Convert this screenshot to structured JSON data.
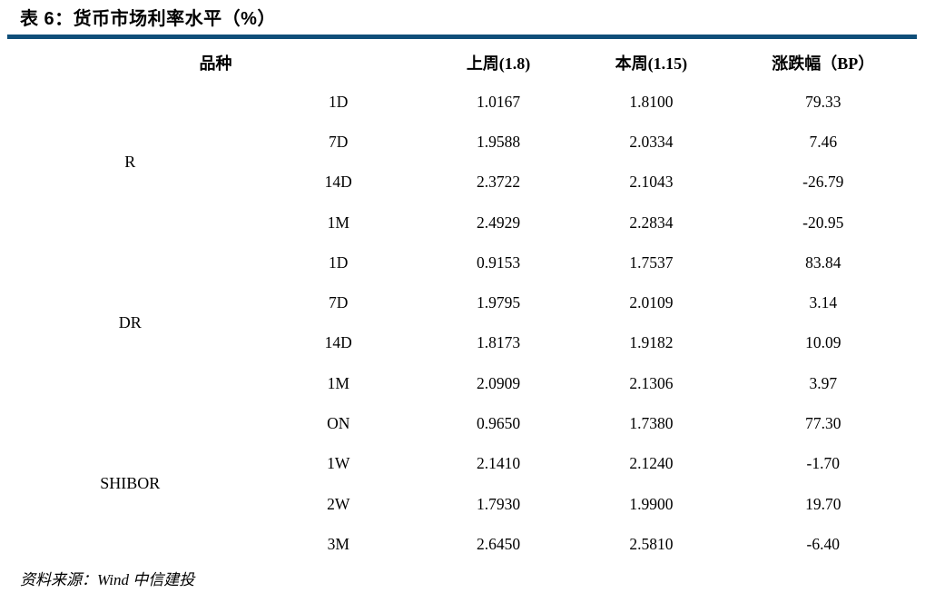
{
  "title": "表 6：货币市场利率水平（%）",
  "theme": {
    "rule_color": "#0f4e79",
    "text_color": "#000000",
    "background_color": "#ffffff"
  },
  "table": {
    "headers": {
      "variety": "品种",
      "last_week": "上周(1.8)",
      "this_week": "本周(1.15)",
      "change_bp": "涨跌幅（BP）"
    },
    "groups": [
      {
        "label": "R",
        "rows": [
          {
            "tenor": "1D",
            "last_week": "1.0167",
            "this_week": "1.8100",
            "change_bp": "79.33"
          },
          {
            "tenor": "7D",
            "last_week": "1.9588",
            "this_week": "2.0334",
            "change_bp": "7.46"
          },
          {
            "tenor": "14D",
            "last_week": "2.3722",
            "this_week": "2.1043",
            "change_bp": "-26.79"
          },
          {
            "tenor": "1M",
            "last_week": "2.4929",
            "this_week": "2.2834",
            "change_bp": "-20.95"
          }
        ]
      },
      {
        "label": "DR",
        "rows": [
          {
            "tenor": "1D",
            "last_week": "0.9153",
            "this_week": "1.7537",
            "change_bp": "83.84"
          },
          {
            "tenor": "7D",
            "last_week": "1.9795",
            "this_week": "2.0109",
            "change_bp": "3.14"
          },
          {
            "tenor": "14D",
            "last_week": "1.8173",
            "this_week": "1.9182",
            "change_bp": "10.09"
          },
          {
            "tenor": "1M",
            "last_week": "2.0909",
            "this_week": "2.1306",
            "change_bp": "3.97"
          }
        ]
      },
      {
        "label": "SHIBOR",
        "rows": [
          {
            "tenor": "ON",
            "last_week": "0.9650",
            "this_week": "1.7380",
            "change_bp": "77.30"
          },
          {
            "tenor": "1W",
            "last_week": "2.1410",
            "this_week": "2.1240",
            "change_bp": "-1.70"
          },
          {
            "tenor": "2W",
            "last_week": "1.7930",
            "this_week": "1.9900",
            "change_bp": "19.70"
          },
          {
            "tenor": "3M",
            "last_week": "2.6450",
            "this_week": "2.5810",
            "change_bp": "-6.40"
          }
        ]
      }
    ]
  },
  "footer": {
    "source": "资料来源：Wind 中信建投"
  }
}
